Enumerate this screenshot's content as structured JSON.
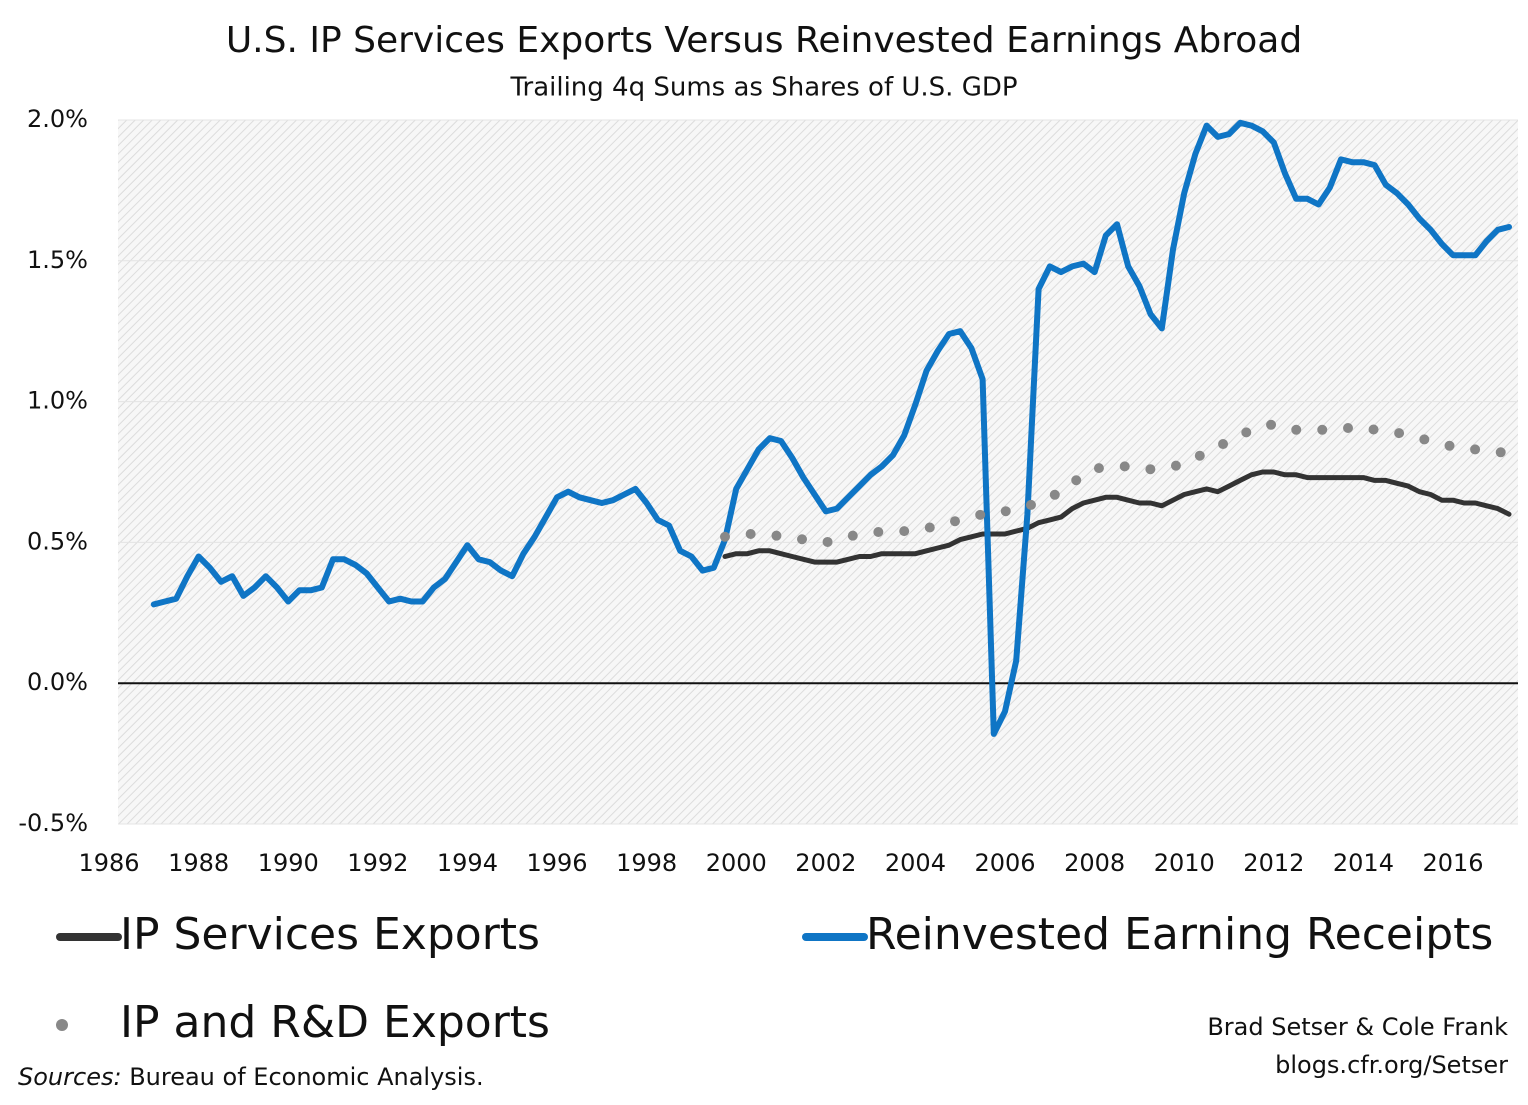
{
  "chart_data": {
    "type": "line",
    "title": "U.S. IP Services Exports Versus Reinvested Earnings Abroad",
    "subtitle": "Trailing 4q Sums as Shares of U.S. GDP",
    "x": [
      1987.0,
      1987.25,
      1987.5,
      1987.75,
      1988.0,
      1988.25,
      1988.5,
      1988.75,
      1989.0,
      1989.25,
      1989.5,
      1989.75,
      1990.0,
      1990.25,
      1990.5,
      1990.75,
      1991.0,
      1991.25,
      1991.5,
      1991.75,
      1992.0,
      1992.25,
      1992.5,
      1992.75,
      1993.0,
      1993.25,
      1993.5,
      1993.75,
      1994.0,
      1994.25,
      1994.5,
      1994.75,
      1995.0,
      1995.25,
      1995.5,
      1995.75,
      1996.0,
      1996.25,
      1996.5,
      1996.75,
      1997.0,
      1997.25,
      1997.5,
      1997.75,
      1998.0,
      1998.25,
      1998.5,
      1998.75,
      1999.0,
      1999.25,
      1999.5,
      1999.75,
      2000.0,
      2000.25,
      2000.5,
      2000.75,
      2001.0,
      2001.25,
      2001.5,
      2001.75,
      2002.0,
      2002.25,
      2002.5,
      2002.75,
      2003.0,
      2003.25,
      2003.5,
      2003.75,
      2004.0,
      2004.25,
      2004.5,
      2004.75,
      2005.0,
      2005.25,
      2005.5,
      2005.75,
      2006.0,
      2006.25,
      2006.5,
      2006.75,
      2007.0,
      2007.25,
      2007.5,
      2007.75,
      2008.0,
      2008.25,
      2008.5,
      2008.75,
      2009.0,
      2009.25,
      2009.5,
      2009.75,
      2010.0,
      2010.25,
      2010.5,
      2010.75,
      2011.0,
      2011.25,
      2011.5,
      2011.75,
      2012.0,
      2012.25,
      2012.5,
      2012.75,
      2013.0,
      2013.25,
      2013.5,
      2013.75,
      2014.0,
      2014.25,
      2014.5,
      2014.75,
      2015.0,
      2015.25,
      2015.5,
      2015.75,
      2016.0,
      2016.25,
      2016.5,
      2016.75,
      2017.0,
      2017.25
    ],
    "series": [
      {
        "name": "IP Services Exports",
        "color": "#333333",
        "style": "solid",
        "values": [
          null,
          null,
          null,
          null,
          null,
          null,
          null,
          null,
          null,
          null,
          null,
          null,
          null,
          null,
          null,
          null,
          null,
          null,
          null,
          null,
          null,
          null,
          null,
          null,
          null,
          null,
          null,
          null,
          null,
          null,
          null,
          null,
          null,
          null,
          null,
          null,
          null,
          null,
          null,
          null,
          null,
          null,
          null,
          null,
          null,
          null,
          null,
          null,
          null,
          null,
          null,
          0.45,
          0.46,
          0.46,
          0.47,
          0.47,
          0.46,
          0.45,
          0.44,
          0.43,
          0.43,
          0.43,
          0.44,
          0.45,
          0.45,
          0.46,
          0.46,
          0.46,
          0.46,
          0.47,
          0.48,
          0.49,
          0.51,
          0.52,
          0.53,
          0.53,
          0.53,
          0.54,
          0.55,
          0.57,
          0.58,
          0.59,
          0.62,
          0.64,
          0.65,
          0.66,
          0.66,
          0.65,
          0.64,
          0.64,
          0.63,
          0.65,
          0.67,
          0.68,
          0.69,
          0.68,
          0.7,
          0.72,
          0.74,
          0.75,
          0.75,
          0.74,
          0.74,
          0.73,
          0.73,
          0.73,
          0.73,
          0.73,
          0.73,
          0.72,
          0.72,
          0.71,
          0.7,
          0.68,
          0.67,
          0.65,
          0.65,
          0.64,
          0.64,
          0.63,
          0.62,
          0.6
        ]
      },
      {
        "name": "Reinvested Earning Receipts",
        "color": "#0f75c5",
        "style": "solid",
        "values": [
          0.28,
          0.29,
          0.3,
          0.38,
          0.45,
          0.41,
          0.36,
          0.38,
          0.31,
          0.34,
          0.38,
          0.34,
          0.29,
          0.33,
          0.33,
          0.34,
          0.44,
          0.44,
          0.42,
          0.39,
          0.34,
          0.29,
          0.3,
          0.29,
          0.29,
          0.34,
          0.37,
          0.43,
          0.49,
          0.44,
          0.43,
          0.4,
          0.38,
          0.46,
          0.52,
          0.59,
          0.66,
          0.68,
          0.66,
          0.65,
          0.64,
          0.65,
          0.67,
          0.69,
          0.64,
          0.58,
          0.56,
          0.47,
          0.45,
          0.4,
          0.41,
          0.51,
          0.69,
          0.76,
          0.83,
          0.87,
          0.86,
          0.8,
          0.73,
          0.67,
          0.61,
          0.62,
          0.66,
          0.7,
          0.74,
          0.77,
          0.81,
          0.88,
          0.99,
          1.11,
          1.18,
          1.24,
          1.25,
          1.19,
          1.08,
          -0.18,
          -0.1,
          0.08,
          0.6,
          1.4,
          1.48,
          1.46,
          1.48,
          1.49,
          1.46,
          1.59,
          1.63,
          1.48,
          1.41,
          1.31,
          1.26,
          1.54,
          1.74,
          1.88,
          1.98,
          1.94,
          1.95,
          1.99,
          1.98,
          1.96,
          1.92,
          1.81,
          1.72,
          1.72,
          1.7,
          1.76,
          1.86,
          1.85,
          1.85,
          1.84,
          1.77,
          1.74,
          1.7,
          1.65,
          1.61,
          1.56,
          1.52,
          1.52,
          1.52,
          1.57,
          1.61,
          1.62
        ]
      },
      {
        "name": "IP and R&D Exports",
        "color": "#888888",
        "style": "dotted",
        "values": [
          null,
          null,
          null,
          null,
          null,
          null,
          null,
          null,
          null,
          null,
          null,
          null,
          null,
          null,
          null,
          null,
          null,
          null,
          null,
          null,
          null,
          null,
          null,
          null,
          null,
          null,
          null,
          null,
          null,
          null,
          null,
          null,
          null,
          null,
          null,
          null,
          null,
          null,
          null,
          null,
          null,
          null,
          null,
          null,
          null,
          null,
          null,
          null,
          null,
          null,
          null,
          0.52,
          0.53,
          0.53,
          0.53,
          0.53,
          0.52,
          0.52,
          0.51,
          0.5,
          0.5,
          0.51,
          0.52,
          0.53,
          0.53,
          0.54,
          0.54,
          0.54,
          0.54,
          0.55,
          0.56,
          0.57,
          0.58,
          0.59,
          0.6,
          0.61,
          0.61,
          0.62,
          0.63,
          0.64,
          0.66,
          0.68,
          0.71,
          0.74,
          0.76,
          0.77,
          0.77,
          0.77,
          0.76,
          0.76,
          0.76,
          0.77,
          0.78,
          0.8,
          0.82,
          0.84,
          0.86,
          0.88,
          0.9,
          0.91,
          0.92,
          0.91,
          0.9,
          0.9,
          0.9,
          0.9,
          0.9,
          0.91,
          0.91,
          0.9,
          0.9,
          0.89,
          0.88,
          0.87,
          0.86,
          0.85,
          0.84,
          0.84,
          0.83,
          0.83,
          0.82,
          0.82
        ]
      }
    ],
    "xlim": [
      1986.2,
      2017.45
    ],
    "xticks": [
      1986,
      1988,
      1990,
      1992,
      1994,
      1996,
      1998,
      2000,
      2002,
      2004,
      2006,
      2008,
      2010,
      2012,
      2014,
      2016
    ],
    "ylim": [
      -0.5,
      2.0
    ],
    "yticks": [
      {
        "value": -0.5,
        "label": "-0.5%"
      },
      {
        "value": 0,
        "label": "0.0%"
      },
      {
        "value": 0.5,
        "label": "0.5%"
      },
      {
        "value": 1.0,
        "label": "1.0%"
      },
      {
        "value": 1.5,
        "label": "1.5%"
      },
      {
        "value": 2.0,
        "label": "2.0%"
      }
    ],
    "grid": true,
    "sources_label": "Sources:",
    "sources": "Bureau of Economic Analysis.",
    "credit": [
      "Brad Setser & Cole Frank",
      "blogs.cfr.org/Setser"
    ]
  }
}
